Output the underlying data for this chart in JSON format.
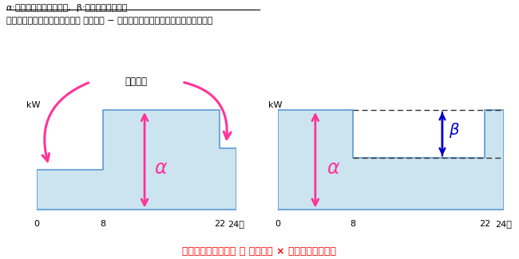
{
  "title_line1": "α:送電サービス契約電力,  β:ピークシフト電力",
  "title_line2": "ピークシフト電力（上限値）＝ 契約電力 − 昼間時間における接続供給電力の最大値",
  "bottom_text": "ピークシフト割引額 ＝ 割引単価 × ピークシフト電力",
  "load_shift_label": "負荷移行",
  "alpha_label": "α",
  "beta_label": "β",
  "kw_label": "kW",
  "bg_color": "#ffffff",
  "bar_fill_color": "#cce4f0",
  "bar_edge_color": "#5b9bd5",
  "pink": "#ff3399",
  "blue": "#0000cc",
  "red_text": "#ff0000"
}
